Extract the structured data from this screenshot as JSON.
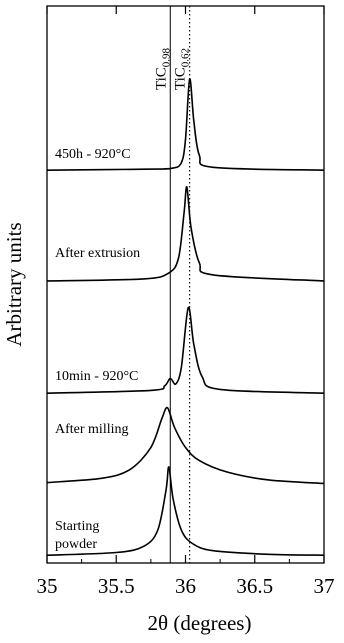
{
  "chart_data": {
    "type": "line",
    "xlabel": "2θ (degrees)",
    "ylabel": "Arbitrary units",
    "xlim": [
      35,
      37
    ],
    "x_ticks": [
      "35",
      "35.5",
      "36",
      "36.5",
      "37"
    ],
    "grid": false,
    "reference_lines": [
      {
        "label_base": "TiC",
        "label_sub": "0.98",
        "x": 35.89,
        "style": "solid"
      },
      {
        "label_base": "TiC",
        "label_sub": "0.62",
        "x": 36.03,
        "style": "dotted"
      }
    ],
    "series": [
      {
        "name": "450h - 920°C",
        "baseline": 0.0,
        "points": [
          [
            35,
            0.02
          ],
          [
            35.7,
            0.03
          ],
          [
            35.9,
            0.04
          ],
          [
            35.97,
            0.1
          ],
          [
            36.0,
            0.35
          ],
          [
            36.03,
            1.0
          ],
          [
            36.06,
            0.55
          ],
          [
            36.1,
            0.18
          ],
          [
            36.2,
            0.05
          ],
          [
            37,
            0.02
          ]
        ]
      },
      {
        "name": "After extrusion",
        "baseline": 0.0,
        "points": [
          [
            35,
            0.02
          ],
          [
            35.7,
            0.04
          ],
          [
            35.88,
            0.1
          ],
          [
            35.95,
            0.25
          ],
          [
            35.99,
            0.7
          ],
          [
            36.01,
            0.95
          ],
          [
            36.04,
            0.55
          ],
          [
            36.1,
            0.2
          ],
          [
            36.2,
            0.08
          ],
          [
            37,
            0.02
          ]
        ]
      },
      {
        "name": "10min - 920°C",
        "baseline": 0.0,
        "points": [
          [
            35,
            0.02
          ],
          [
            35.75,
            0.05
          ],
          [
            35.85,
            0.1
          ],
          [
            35.89,
            0.18
          ],
          [
            35.93,
            0.12
          ],
          [
            35.97,
            0.3
          ],
          [
            36.02,
            0.95
          ],
          [
            36.06,
            0.55
          ],
          [
            36.12,
            0.2
          ],
          [
            36.25,
            0.06
          ],
          [
            37,
            0.02
          ]
        ]
      },
      {
        "name": "After milling",
        "baseline": 0.0,
        "points": [
          [
            35,
            0.05
          ],
          [
            35.4,
            0.1
          ],
          [
            35.6,
            0.2
          ],
          [
            35.75,
            0.45
          ],
          [
            35.83,
            0.78
          ],
          [
            35.87,
            0.9
          ],
          [
            35.92,
            0.68
          ],
          [
            36.0,
            0.45
          ],
          [
            36.1,
            0.3
          ],
          [
            36.3,
            0.17
          ],
          [
            36.6,
            0.08
          ],
          [
            37,
            0.04
          ]
        ]
      },
      {
        "name": "Starting powder",
        "name_lines": [
          "Starting",
          "powder"
        ],
        "baseline": 0.0,
        "points": [
          [
            35,
            0.02
          ],
          [
            35.5,
            0.05
          ],
          [
            35.7,
            0.12
          ],
          [
            35.8,
            0.3
          ],
          [
            35.86,
            0.75
          ],
          [
            35.88,
            1.0
          ],
          [
            35.91,
            0.65
          ],
          [
            35.97,
            0.3
          ],
          [
            36.05,
            0.15
          ],
          [
            36.2,
            0.07
          ],
          [
            36.6,
            0.03
          ],
          [
            37,
            0.02
          ]
        ]
      }
    ]
  }
}
